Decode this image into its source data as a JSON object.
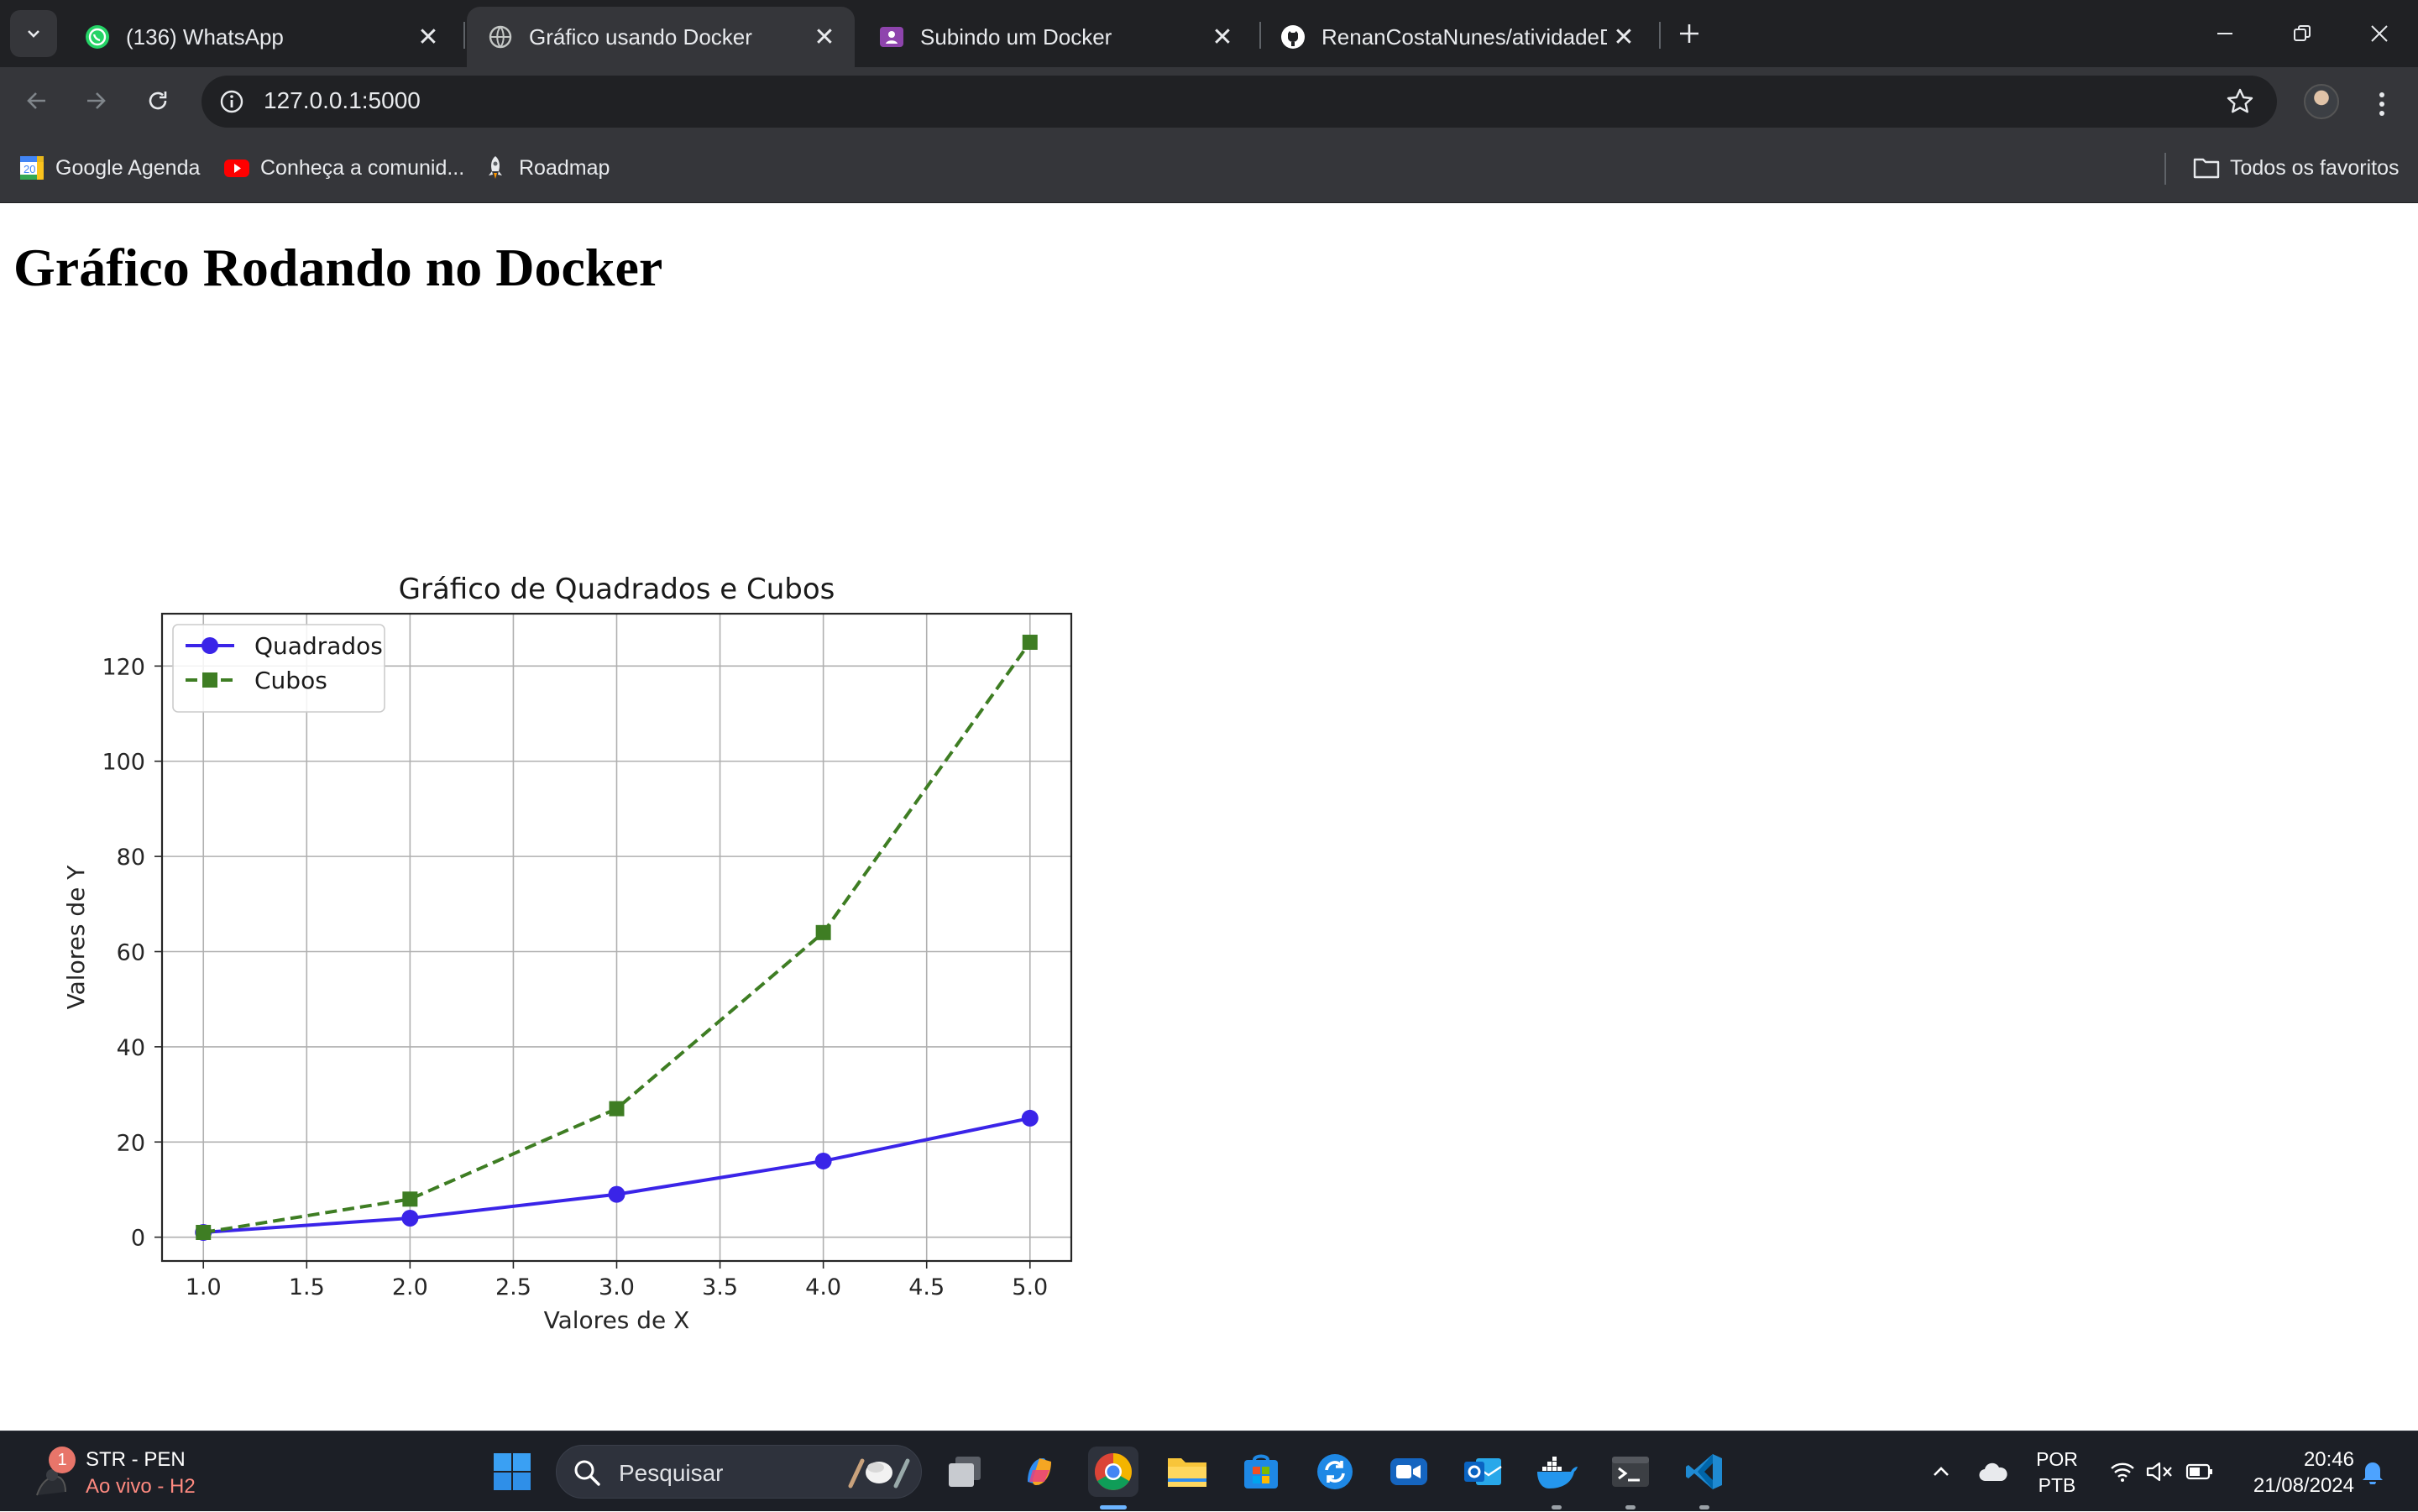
{
  "browser": {
    "tabs": [
      {
        "title": "(136) WhatsApp",
        "icon": "whatsapp-icon",
        "active": false
      },
      {
        "title": "Gráfico usando Docker",
        "icon": "globe-icon",
        "active": true
      },
      {
        "title": "Subindo um Docker",
        "icon": "classroom-icon",
        "active": false
      },
      {
        "title": "RenanCostaNunes/atividadeDocker",
        "icon": "github-icon",
        "active": false
      }
    ],
    "url": "127.0.0.1:5000",
    "bookmarks": [
      {
        "label": "Google Agenda",
        "icon": "calendar-icon"
      },
      {
        "label": "Conheça a comunid...",
        "icon": "youtube-icon"
      },
      {
        "label": "Roadmap",
        "icon": "rocket-icon"
      }
    ],
    "all_bookmarks": "Todos os favoritos"
  },
  "page": {
    "heading": "Gráfico Rodando no Docker"
  },
  "chart_data": {
    "type": "line",
    "title": "Gráfico de Quadrados e Cubos",
    "xlabel": "Valores de X",
    "ylabel": "Valores de Y",
    "x": [
      1,
      2,
      3,
      4,
      5
    ],
    "xlim": [
      0.8,
      5.2
    ],
    "ylim": [
      -5,
      131
    ],
    "xticks": [
      "1.0",
      "1.5",
      "2.0",
      "2.5",
      "3.0",
      "3.5",
      "4.0",
      "4.5",
      "5.0"
    ],
    "yticks": [
      "0",
      "20",
      "40",
      "60",
      "80",
      "100",
      "120"
    ],
    "grid": true,
    "legend_position": "upper-left",
    "series": [
      {
        "name": "Quadrados",
        "values": [
          1,
          4,
          9,
          16,
          25
        ],
        "color": "#3a24e8",
        "marker": "circle",
        "line": "solid"
      },
      {
        "name": "Cubos",
        "values": [
          1,
          8,
          27,
          64,
          125
        ],
        "color": "#3e7d23",
        "marker": "square",
        "line": "dashed"
      }
    ]
  },
  "taskbar": {
    "live_badge": "1",
    "live_title": "STR - PEN",
    "live_subtitle": "Ao vivo - H2",
    "search_placeholder": "Pesquisar",
    "lang_line1": "POR",
    "lang_line2": "PTB",
    "time": "20:46",
    "date": "21/08/2024"
  }
}
